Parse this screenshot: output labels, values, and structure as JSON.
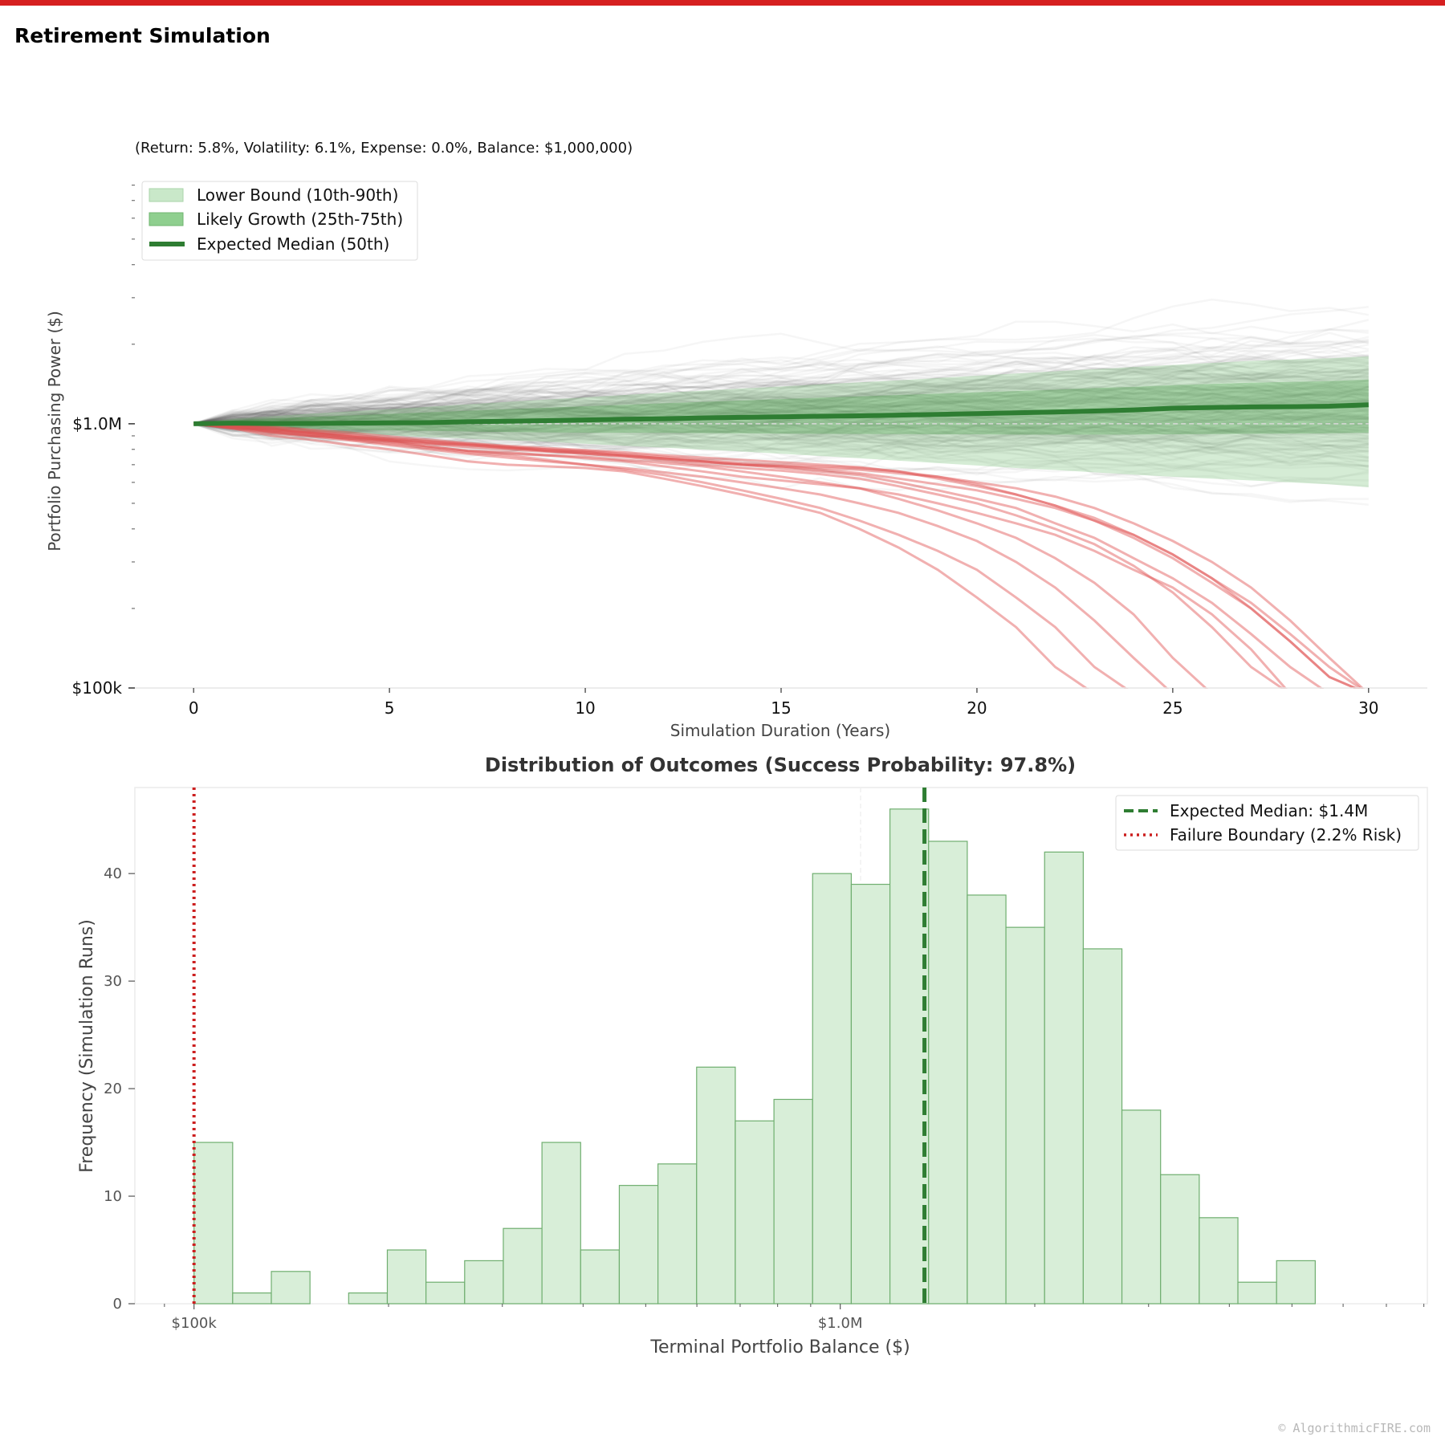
{
  "page": {
    "title": "Retirement Simulation",
    "watermark": "© AlgorithmicFIRE.com",
    "accent_color": "#d62020"
  },
  "chart_data": [
    {
      "type": "line",
      "subtitle": "(Return: 5.8%, Volatility: 6.1%, Expense: 0.0%, Balance: $1,000,000)",
      "xlabel": "Simulation Duration (Years)",
      "ylabel": "Portfolio Purchasing Power ($)",
      "y_scale": "log",
      "xlim": [
        -1.5,
        31.5
      ],
      "ylim": [
        100000,
        8500000
      ],
      "x_ticks": [
        0,
        5,
        10,
        15,
        20,
        25,
        30
      ],
      "y_tick_labels": [
        {
          "value": 1000000,
          "label": "$1.0M"
        },
        {
          "value": 100000,
          "label": "$100k"
        }
      ],
      "baseline": 1000000,
      "legend_placement": "top-left",
      "legend": [
        {
          "label": "Lower Bound (10th-90th)",
          "kind": "band-light",
          "color": "#c9e8c9"
        },
        {
          "label": "Likely Growth (25th-75th)",
          "kind": "band-dark",
          "color": "#8fcf8f"
        },
        {
          "label": "Expected Median (50th)",
          "kind": "line",
          "color": "#2e7d32"
        }
      ],
      "years": [
        0,
        1,
        2,
        3,
        4,
        5,
        6,
        7,
        8,
        9,
        10,
        11,
        12,
        13,
        14,
        15,
        16,
        17,
        18,
        19,
        20,
        21,
        22,
        23,
        24,
        25,
        26,
        27,
        28,
        29,
        30
      ],
      "median": [
        1000000,
        1005000,
        1002000,
        1003000,
        1005000,
        1008000,
        1010000,
        1018000,
        1022000,
        1028000,
        1034000,
        1040000,
        1045000,
        1052000,
        1058000,
        1062000,
        1068000,
        1072000,
        1078000,
        1085000,
        1092000,
        1100000,
        1108000,
        1118000,
        1128000,
        1145000,
        1152000,
        1158000,
        1160000,
        1165000,
        1180000
      ],
      "p25": [
        1000000,
        982000,
        970000,
        960000,
        950000,
        945000,
        940000,
        935000,
        930000,
        928000,
        925000,
        925000,
        924000,
        922000,
        920000,
        918000,
        916000,
        915000,
        914000,
        912000,
        912000,
        910000,
        910000,
        910000,
        910000,
        912000,
        914000,
        916000,
        918000,
        920000,
        925000
      ],
      "p75": [
        1000000,
        1030000,
        1048000,
        1062000,
        1075000,
        1090000,
        1105000,
        1120000,
        1135000,
        1150000,
        1165000,
        1180000,
        1195000,
        1210000,
        1225000,
        1240000,
        1255000,
        1270000,
        1285000,
        1300000,
        1315000,
        1330000,
        1345000,
        1365000,
        1380000,
        1400000,
        1415000,
        1430000,
        1440000,
        1450000,
        1470000
      ],
      "p10": [
        1000000,
        968000,
        950000,
        935000,
        920000,
        905000,
        890000,
        878000,
        866000,
        855000,
        840000,
        825000,
        812000,
        798000,
        785000,
        770000,
        755000,
        740000,
        725000,
        710000,
        695000,
        680000,
        668000,
        655000,
        642000,
        630000,
        620000,
        610000,
        600000,
        590000,
        575000
      ],
      "p90": [
        1000000,
        1045000,
        1068000,
        1092000,
        1115000,
        1135000,
        1160000,
        1185000,
        1210000,
        1235000,
        1260000,
        1285000,
        1310000,
        1335000,
        1360000,
        1385000,
        1410000,
        1435000,
        1460000,
        1490000,
        1520000,
        1550000,
        1580000,
        1610000,
        1640000,
        1670000,
        1700000,
        1730000,
        1750000,
        1770000,
        1800000
      ],
      "failed_paths": [
        [
          1000000,
          960000,
          900000,
          870000,
          830000,
          800000,
          760000,
          720000,
          700000,
          690000,
          680000,
          660000,
          620000,
          580000,
          540000,
          500000,
          460000,
          400000,
          340000,
          280000,
          220000,
          170000,
          120000,
          95000
        ],
        [
          1000000,
          980000,
          930000,
          900000,
          880000,
          850000,
          820000,
          790000,
          780000,
          760000,
          740000,
          720000,
          690000,
          660000,
          630000,
          610000,
          590000,
          570000,
          540000,
          500000,
          460000,
          420000,
          380000,
          330000,
          280000,
          240000,
          190000,
          140000,
          95000
        ],
        [
          1000000,
          990000,
          960000,
          920000,
          890000,
          860000,
          840000,
          830000,
          810000,
          790000,
          780000,
          760000,
          740000,
          720000,
          700000,
          680000,
          660000,
          640000,
          600000,
          560000,
          520000,
          480000,
          420000,
          370000,
          310000,
          260000,
          210000,
          160000,
          120000,
          95000
        ],
        [
          1000000,
          970000,
          940000,
          910000,
          870000,
          840000,
          810000,
          780000,
          760000,
          730000,
          700000,
          670000,
          640000,
          600000,
          560000,
          520000,
          480000,
          430000,
          380000,
          330000,
          280000,
          220000,
          170000,
          120000,
          95000
        ],
        [
          1000000,
          975000,
          945000,
          925000,
          895000,
          870000,
          850000,
          830000,
          810000,
          800000,
          780000,
          760000,
          740000,
          720000,
          700000,
          690000,
          670000,
          650000,
          620000,
          590000,
          560000,
          520000,
          480000,
          430000,
          380000,
          320000,
          260000,
          200000,
          150000,
          110000,
          95000
        ],
        [
          1000000,
          990000,
          970000,
          940000,
          910000,
          880000,
          860000,
          840000,
          820000,
          800000,
          790000,
          770000,
          750000,
          730000,
          710000,
          700000,
          690000,
          680000,
          660000,
          630000,
          590000,
          540000,
          490000,
          440000,
          380000,
          320000,
          260000,
          210000,
          160000,
          120000,
          95000
        ],
        [
          1000000,
          965000,
          930000,
          905000,
          880000,
          860000,
          820000,
          790000,
          770000,
          760000,
          750000,
          730000,
          710000,
          690000,
          660000,
          630000,
          600000,
          570000,
          520000,
          470000,
          420000,
          370000,
          310000,
          250000,
          190000,
          130000,
          95000
        ],
        [
          1000000,
          985000,
          955000,
          930000,
          905000,
          880000,
          855000,
          835000,
          815000,
          790000,
          770000,
          750000,
          725000,
          700000,
          680000,
          665000,
          645000,
          620000,
          580000,
          540000,
          500000,
          450000,
          400000,
          350000,
          290000,
          230000,
          170000,
          120000,
          95000
        ],
        [
          1000000,
          995000,
          975000,
          950000,
          925000,
          895000,
          870000,
          845000,
          825000,
          810000,
          795000,
          780000,
          760000,
          745000,
          730000,
          715000,
          700000,
          685000,
          660000,
          620000,
          580000,
          540000,
          490000,
          430000,
          370000,
          310000,
          250000,
          200000,
          150000,
          110000,
          95000
        ],
        [
          1000000,
          960000,
          920000,
          895000,
          865000,
          830000,
          800000,
          770000,
          745000,
          720000,
          700000,
          680000,
          655000,
          630000,
          600000,
          570000,
          540000,
          500000,
          460000,
          410000,
          360000,
          300000,
          240000,
          180000,
          130000,
          95000
        ],
        [
          1000000,
          980000,
          950000,
          920000,
          895000,
          865000,
          840000,
          815000,
          800000,
          785000,
          770000,
          755000,
          735000,
          715000,
          700000,
          690000,
          680000,
          670000,
          650000,
          630000,
          600000,
          570000,
          530000,
          480000,
          420000,
          360000,
          300000,
          240000,
          180000,
          130000,
          95000
        ]
      ]
    },
    {
      "type": "bar",
      "title": "Distribution of Outcomes (Success Probability: 97.8%)",
      "xlabel": "Terminal Portfolio Balance ($)",
      "ylabel": "Frequency (Simulation Runs)",
      "x_scale": "log",
      "xlim": [
        81000,
        8100000
      ],
      "ylim": [
        0,
        48
      ],
      "y_ticks": [
        0,
        10,
        20,
        30,
        40
      ],
      "x_tick_labels": [
        {
          "value": 100000,
          "label": "$100k"
        },
        {
          "value": 1000000,
          "label": "$1.0M"
        }
      ],
      "bin_start": 100000,
      "bin_factor": 1.1477,
      "counts": [
        15,
        1,
        3,
        0,
        1,
        5,
        2,
        4,
        7,
        15,
        5,
        11,
        13,
        22,
        17,
        19,
        40,
        39,
        46,
        43,
        38,
        35,
        42,
        33,
        18,
        12,
        8,
        2,
        4
      ],
      "median_value": 1350000,
      "failure_value": 100000,
      "legend_placement": "top-right",
      "legend": [
        {
          "label": "Expected Median: $1.4M",
          "kind": "dashed",
          "color": "#2e7d32"
        },
        {
          "label": "Failure Boundary (2.2% Risk)",
          "kind": "dotted",
          "color": "#cc1f1f"
        }
      ],
      "bar_color": "#d8eed8",
      "bar_edge_color": "#6fae6f"
    }
  ]
}
